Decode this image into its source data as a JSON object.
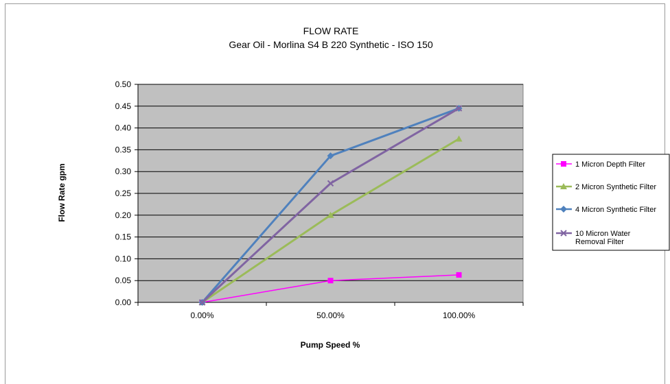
{
  "chart_data": {
    "type": "line",
    "title": "FLOW RATE",
    "subtitle": "Gear Oil - Morlina S4 B 220 Synthetic - ISO 150",
    "xlabel": "Pump Speed %",
    "ylabel": "Flow Rate gpm",
    "categories": [
      "0.00%",
      "50.00%",
      "100.00%"
    ],
    "ylim": [
      0,
      0.5
    ],
    "yticks": [
      "0.00",
      "0.05",
      "0.10",
      "0.15",
      "0.20",
      "0.25",
      "0.30",
      "0.35",
      "0.40",
      "0.45",
      "0.50"
    ],
    "grid": true,
    "legend_position": "right",
    "series": [
      {
        "name": "1 Micron Depth Filter",
        "legend_lines": [
          "1 Micron Depth Filter"
        ],
        "values": [
          0,
          0.05,
          0.063
        ],
        "color": "#ff00ff",
        "marker": "square"
      },
      {
        "name": "2 Micron Synthetic Filter",
        "legend_lines": [
          "2 Micron Synthetic Filter"
        ],
        "values": [
          0,
          0.2,
          0.375
        ],
        "color": "#9bbb59",
        "marker": "triangle"
      },
      {
        "name": "4 Micron Synthetic Filter",
        "legend_lines": [
          "4 Micron Synthetic Filter"
        ],
        "values": [
          0,
          0.336,
          0.445
        ],
        "color": "#4f81bd",
        "marker": "diamond"
      },
      {
        "name": "10 Micron Water Removal Filter",
        "legend_lines": [
          "10 Micron Water",
          "Removal Filter"
        ],
        "values": [
          0,
          0.273,
          0.445
        ],
        "color": "#8064a2",
        "marker": "x"
      }
    ],
    "plot_background": "#c0c0c0"
  }
}
